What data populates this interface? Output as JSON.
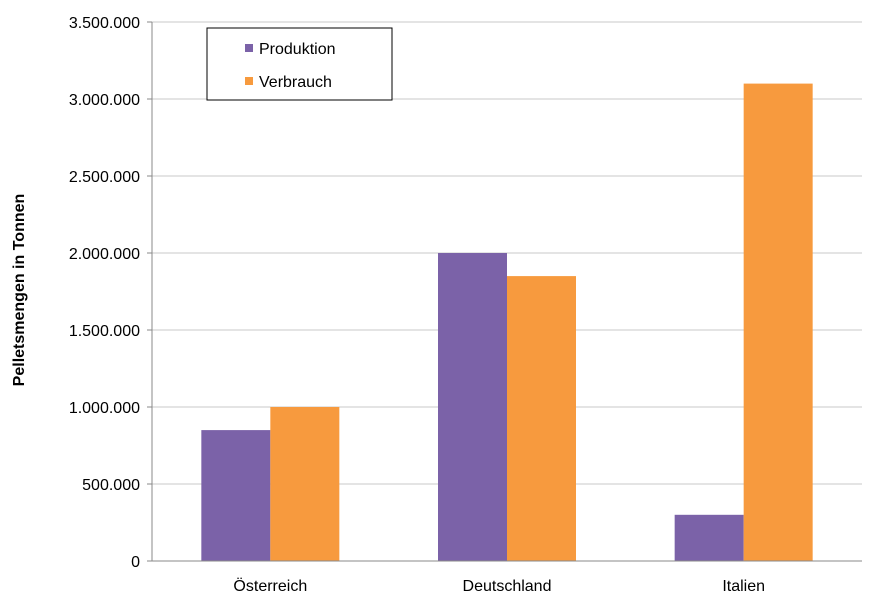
{
  "chart_data": {
    "type": "bar",
    "ylabel": "Pelletsmengen in Tonnen",
    "categories": [
      "Österreich",
      "Deutschland",
      "Italien"
    ],
    "series": [
      {
        "name": "Produktion",
        "values": [
          850000,
          2000000,
          300000
        ],
        "color": "#7b62a8"
      },
      {
        "name": "Verbrauch",
        "values": [
          1000000,
          1850000,
          3100000
        ],
        "color": "#f79a3e"
      }
    ],
    "ylim": [
      0,
      3500000
    ],
    "yticks": [
      0,
      500000,
      1000000,
      1500000,
      2000000,
      2500000,
      3000000,
      3500000
    ],
    "ytick_labels": [
      "0",
      "500.000",
      "1.000.000",
      "1.500.000",
      "2.000.000",
      "2.500.000",
      "3.000.000",
      "3.500.000"
    ],
    "grid": true,
    "legend_position": "top-left"
  }
}
